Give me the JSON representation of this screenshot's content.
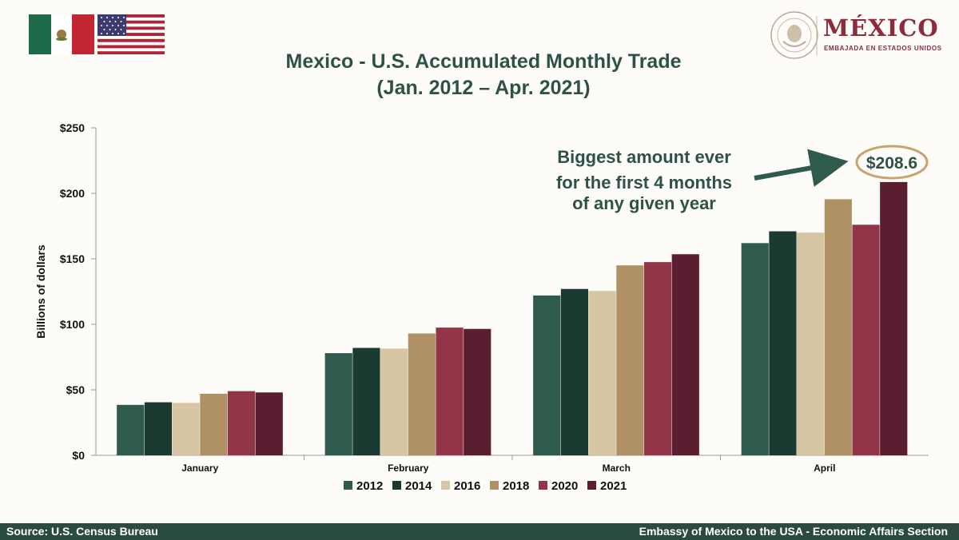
{
  "header": {
    "logo_word": "MÉXICO",
    "logo_subtitle": "EMBAJADA EN ESTADOS UNIDOS",
    "seal_text": "ESTADOS UNIDOS MEXICANOS"
  },
  "chart_data": {
    "type": "bar",
    "title": "Mexico - U.S. Accumulated Monthly Trade",
    "subtitle": "(Jan. 2012 – Apr. 2021)",
    "xlabel": "",
    "ylabel": "Billions of dollars",
    "ylim": [
      0,
      250
    ],
    "yticks": [
      0,
      50,
      100,
      150,
      200,
      250
    ],
    "ytick_labels": [
      "$0",
      "$50",
      "$100",
      "$150",
      "$200",
      "$250"
    ],
    "categories": [
      "January",
      "February",
      "March",
      "April"
    ],
    "series": [
      {
        "name": "2012",
        "color": "#2f5a4e",
        "values": [
          38.5,
          78,
          122,
          162
        ]
      },
      {
        "name": "2014",
        "color": "#1b3a32",
        "values": [
          40.5,
          82,
          127,
          171
        ]
      },
      {
        "name": "2016",
        "color": "#d6c6a4",
        "values": [
          40,
          81.5,
          125.5,
          170
        ]
      },
      {
        "name": "2018",
        "color": "#b09165",
        "values": [
          47,
          93,
          145,
          195.5
        ]
      },
      {
        "name": "2020",
        "color": "#933549",
        "values": [
          49,
          97.5,
          147.5,
          176
        ]
      },
      {
        "name": "2021",
        "color": "#5a1e30",
        "values": [
          48,
          96.5,
          153.5,
          208.6
        ]
      }
    ],
    "legend_position": "bottom",
    "annotation": {
      "lines": [
        "Biggest amount ever",
        "for the first 4 months",
        "of any given year"
      ],
      "value_label": "$208.6",
      "highlight_color": "#c9a36b",
      "text_color": "#2f5248"
    }
  },
  "footer": {
    "source": "Source: U.S. Census Bureau",
    "embassy": "Embassy of Mexico to the USA - Economic Affairs Section"
  }
}
